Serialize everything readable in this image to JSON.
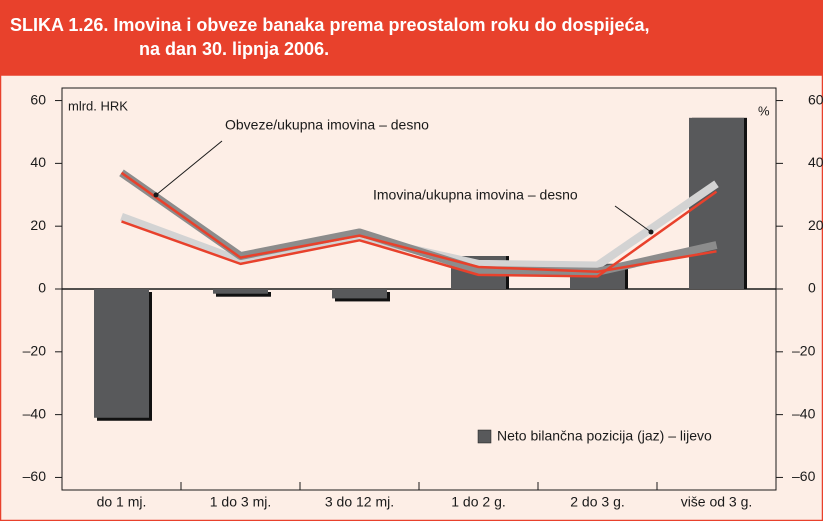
{
  "chart_data": {
    "type": "bar",
    "title": [
      "SLIKA 1.26. Imovina i obveze banaka prema preostalom roku do dospijeća,",
      "na dan 30. lipnja 2006."
    ],
    "y_label": "mlrd. HRK",
    "y2_label": "%",
    "categories": [
      "do 1 mj.",
      "1 do 3 mj.",
      "3 do 12 mj.",
      "1 do 2 g.",
      "2 do 3 g.",
      "više od 3 g."
    ],
    "series": [
      {
        "name": "Neto bilančna pozicija (jaz) – lijevo",
        "type": "bar",
        "color": "#58595b",
        "values": [
          -41,
          -1.5,
          -3,
          10.5,
          8,
          54.5
        ]
      },
      {
        "type": "line",
        "axis": "y2",
        "color": "#e8412c",
        "values": [
          21.5,
          8,
          15.5,
          4.5,
          4,
          31
        ]
      },
      {
        "type": "line",
        "axis": "y2",
        "color": "#e8412c",
        "values": [
          37,
          10,
          17,
          7,
          5.5,
          12
        ]
      },
      {
        "type": "line",
        "axis": "y2",
        "color": "#d3d3d3",
        "values": [
          23,
          9,
          16.5,
          8,
          7.5,
          33.5
        ]
      },
      {
        "type": "line",
        "axis": "y2",
        "color": "#8c8c8c",
        "values": [
          37,
          10.5,
          18,
          6,
          5.5,
          14
        ]
      }
    ],
    "annotations": [
      "Obveze/ukupna imovina – desno",
      "Imovina/ukupna imovina – desno"
    ],
    "ylim": [
      -64,
      64
    ],
    "yticks": [
      {
        "value": -60,
        "label": "–60"
      },
      {
        "value": -40,
        "label": "–40"
      },
      {
        "value": -20,
        "label": "–20"
      },
      0,
      20,
      40,
      60
    ],
    "y2lim": [
      -64,
      64
    ],
    "y2ticks": [
      {
        "value": -60,
        "label": "–60"
      },
      {
        "value": -40,
        "label": "–40"
      },
      {
        "value": -20,
        "label": "–20"
      },
      0,
      20,
      40,
      60
    ]
  }
}
